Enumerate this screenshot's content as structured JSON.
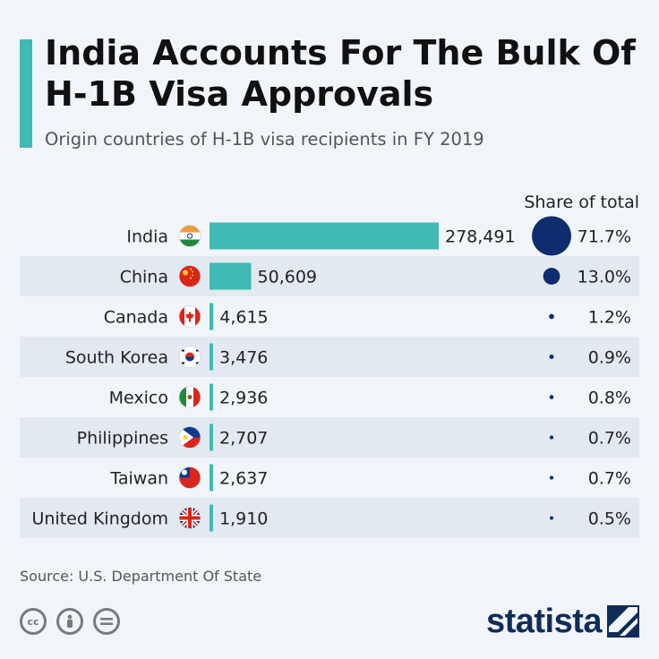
{
  "header": {
    "title": "India Accounts For The Bulk Of H-1B Visa Approvals",
    "subtitle": "Origin countries of H-1B visa recipients in FY 2019"
  },
  "footer": {
    "source": "Source: U.S. Department Of State",
    "brand": "statista"
  },
  "chart_data": {
    "type": "bar",
    "orientation": "horizontal",
    "title": "India Accounts For The Bulk Of H-1B Visa Approvals",
    "subtitle": "Origin countries of H-1B visa recipients in FY 2019",
    "categories": [
      "India",
      "China",
      "Canada",
      "South Korea",
      "Mexico",
      "Philippines",
      "Taiwan",
      "United Kingdom"
    ],
    "values": [
      278491,
      50609,
      4615,
      3476,
      2936,
      2707,
      2637,
      1910
    ],
    "value_labels": [
      "278,491",
      "50,609",
      "4,615",
      "3,476",
      "2,936",
      "2,707",
      "2,637",
      "1,910"
    ],
    "share_header": "Share of total",
    "shares": [
      71.7,
      13.0,
      1.2,
      0.9,
      0.8,
      0.7,
      0.7,
      0.5
    ],
    "share_labels": [
      "71.7%",
      "13.0%",
      "1.2%",
      "0.9%",
      "0.8%",
      "0.7%",
      "0.7%",
      "0.5%"
    ],
    "flag_icons": [
      "india-flag-icon",
      "china-flag-icon",
      "canada-flag-icon",
      "south-korea-flag-icon",
      "mexico-flag-icon",
      "philippines-flag-icon",
      "taiwan-flag-icon",
      "united-kingdom-flag-icon"
    ],
    "colors": {
      "bar": "#3fbab4",
      "bubble": "#0f2c6e",
      "stripe": "#e3e9f1"
    }
  }
}
